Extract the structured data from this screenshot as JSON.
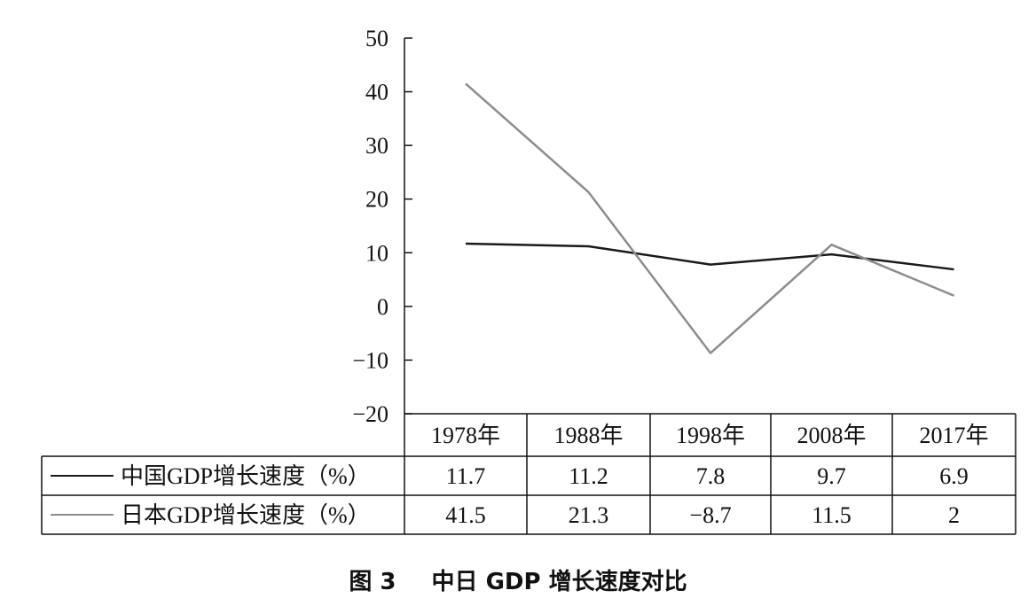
{
  "chart_data": {
    "type": "line",
    "title": "",
    "xlabel": "",
    "ylabel": "",
    "categories": [
      "1978年",
      "1988年",
      "1998年",
      "2008年",
      "2017年"
    ],
    "ylim": [
      -20,
      50
    ],
    "y_ticks": [
      "50",
      "40",
      "30",
      "20",
      "10",
      "0",
      "−10",
      "−20"
    ],
    "y_tick_values": [
      50,
      40,
      30,
      20,
      10,
      0,
      -10,
      -20
    ],
    "series": [
      {
        "name": "中国GDP增长速度（%）",
        "color": "#1a1a1a",
        "values": [
          11.7,
          11.2,
          7.8,
          9.7,
          6.9
        ],
        "value_labels": [
          "11.7",
          "11.2",
          "7.8",
          "9.7",
          "6.9"
        ]
      },
      {
        "name": "日本GDP增长速度（%）",
        "color": "#8c8c8c",
        "values": [
          41.5,
          21.3,
          -8.7,
          11.5,
          2
        ],
        "value_labels": [
          "41.5",
          "21.3",
          "−8.7",
          "11.5",
          "2"
        ]
      }
    ],
    "legend": "data-table-left",
    "grid": false
  },
  "caption": {
    "figure_label": "图 3",
    "text": "中日 GDP 增长速度对比"
  }
}
